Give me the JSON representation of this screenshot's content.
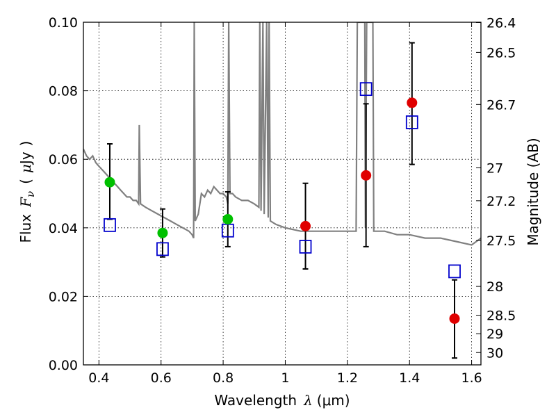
{
  "chart_data": {
    "type": "scatter",
    "xlabel": "Wavelength",
    "xlabel_symbol": "λ",
    "xlabel_unit": "(μm)",
    "ylabel": "Flux",
    "ylabel_symbol": "F",
    "ylabel_subscript": "ν",
    "ylabel_unit_open": "(",
    "ylabel_unit_mu": "μ",
    "ylabel_unit": "Jy",
    "ylabel_unit_close": ")",
    "y2label": "Magnitude (AB)",
    "xlim": [
      0.35,
      1.63
    ],
    "ylim": [
      0.0,
      0.1
    ],
    "grid": true,
    "x_ticks": [
      0.4,
      0.6,
      0.8,
      1.0,
      1.2,
      1.4,
      1.6
    ],
    "x_tick_labels": [
      "0.4",
      "0.6",
      "0.8",
      "1",
      "1.2",
      "1.4",
      "1.6"
    ],
    "y_ticks": [
      0.0,
      0.02,
      0.04,
      0.06,
      0.08,
      0.1
    ],
    "y_tick_labels": [
      "0.00",
      "0.02",
      "0.04",
      "0.06",
      "0.08",
      "0.10"
    ],
    "y2_ticks": [
      {
        "flux": 0.0999,
        "label": "26.4"
      },
      {
        "flux": 0.0912,
        "label": "26.5"
      },
      {
        "flux": 0.076,
        "label": "26.7"
      },
      {
        "flux": 0.0575,
        "label": "27"
      },
      {
        "flux": 0.0479,
        "label": "27.2"
      },
      {
        "flux": 0.0363,
        "label": "27.5"
      },
      {
        "flux": 0.0229,
        "label": "28"
      },
      {
        "flux": 0.0145,
        "label": "28.5"
      },
      {
        "flux": 0.0091,
        "label": "29"
      },
      {
        "flux": 0.0036,
        "label": "30"
      }
    ],
    "series": [
      {
        "kind": "model-sed",
        "color": "#808080",
        "points": [
          [
            0.35,
            0.063
          ],
          [
            0.36,
            0.061
          ],
          [
            0.37,
            0.06
          ],
          [
            0.38,
            0.061
          ],
          [
            0.39,
            0.059
          ],
          [
            0.4,
            0.058
          ],
          [
            0.41,
            0.057
          ],
          [
            0.42,
            0.056
          ],
          [
            0.43,
            0.055
          ],
          [
            0.44,
            0.054
          ],
          [
            0.45,
            0.053
          ],
          [
            0.46,
            0.052
          ],
          [
            0.47,
            0.051
          ],
          [
            0.48,
            0.05
          ],
          [
            0.49,
            0.049
          ],
          [
            0.5,
            0.049
          ],
          [
            0.51,
            0.048
          ],
          [
            0.52,
            0.048
          ],
          [
            0.528,
            0.047
          ],
          [
            0.53,
            0.07
          ],
          [
            0.534,
            0.047
          ],
          [
            0.55,
            0.046
          ],
          [
            0.57,
            0.045
          ],
          [
            0.59,
            0.044
          ],
          [
            0.61,
            0.043
          ],
          [
            0.63,
            0.042
          ],
          [
            0.65,
            0.041
          ],
          [
            0.67,
            0.04
          ],
          [
            0.69,
            0.039
          ],
          [
            0.7,
            0.038
          ],
          [
            0.705,
            0.037
          ],
          [
            0.707,
            0.1
          ],
          [
            0.71,
            0.042
          ],
          [
            0.72,
            0.044
          ],
          [
            0.73,
            0.05
          ],
          [
            0.74,
            0.049
          ],
          [
            0.75,
            0.051
          ],
          [
            0.76,
            0.05
          ],
          [
            0.77,
            0.052
          ],
          [
            0.78,
            0.051
          ],
          [
            0.79,
            0.05
          ],
          [
            0.8,
            0.05
          ],
          [
            0.81,
            0.049
          ],
          [
            0.815,
            0.047
          ],
          [
            0.818,
            0.1
          ],
          [
            0.822,
            0.05
          ],
          [
            0.83,
            0.05
          ],
          [
            0.84,
            0.049
          ],
          [
            0.86,
            0.048
          ],
          [
            0.88,
            0.048
          ],
          [
            0.9,
            0.047
          ],
          [
            0.915,
            0.046
          ],
          [
            0.918,
            0.1
          ],
          [
            0.922,
            0.045
          ],
          [
            0.928,
            0.1
          ],
          [
            0.932,
            0.044
          ],
          [
            0.94,
            0.1
          ],
          [
            0.945,
            0.043
          ],
          [
            0.948,
            0.1
          ],
          [
            0.952,
            0.042
          ],
          [
            0.97,
            0.041
          ],
          [
            1.0,
            0.04
          ],
          [
            1.05,
            0.039
          ],
          [
            1.1,
            0.039
          ],
          [
            1.15,
            0.039
          ],
          [
            1.2,
            0.039
          ],
          [
            1.228,
            0.039
          ],
          [
            1.232,
            0.1
          ],
          [
            1.256,
            0.1
          ],
          [
            1.258,
            0.04
          ],
          [
            1.262,
            0.1
          ],
          [
            1.282,
            0.1
          ],
          [
            1.285,
            0.039
          ],
          [
            1.32,
            0.039
          ],
          [
            1.36,
            0.038
          ],
          [
            1.4,
            0.038
          ],
          [
            1.45,
            0.037
          ],
          [
            1.5,
            0.037
          ],
          [
            1.55,
            0.036
          ],
          [
            1.6,
            0.035
          ],
          [
            1.63,
            0.037
          ]
        ]
      },
      {
        "kind": "observed",
        "color": "#00c000",
        "points": [
          {
            "x": 0.435,
            "y": 0.0533,
            "err_low": 0.0425,
            "err_high": 0.0645
          },
          {
            "x": 0.605,
            "y": 0.0385,
            "err_low": 0.0315,
            "err_high": 0.0455
          },
          {
            "x": 0.815,
            "y": 0.0425,
            "err_low": 0.0345,
            "err_high": 0.0505
          }
        ]
      },
      {
        "kind": "observed",
        "color": "#e00000",
        "points": [
          {
            "x": 1.065,
            "y": 0.0405,
            "err_low": 0.028,
            "err_high": 0.053
          },
          {
            "x": 1.26,
            "y": 0.0553,
            "err_low": 0.0345,
            "err_high": 0.0762
          },
          {
            "x": 1.408,
            "y": 0.0765,
            "err_low": 0.0585,
            "err_high": 0.094
          },
          {
            "x": 1.545,
            "y": 0.0135,
            "err_low": 0.002,
            "err_high": 0.0248
          }
        ]
      },
      {
        "kind": "model-photometry",
        "color": "#0000cc",
        "points": [
          {
            "x": 0.435,
            "y": 0.0408
          },
          {
            "x": 0.605,
            "y": 0.0338
          },
          {
            "x": 0.815,
            "y": 0.0392
          },
          {
            "x": 1.065,
            "y": 0.0345
          },
          {
            "x": 1.26,
            "y": 0.0805
          },
          {
            "x": 1.408,
            "y": 0.0708
          },
          {
            "x": 1.545,
            "y": 0.0273
          }
        ]
      }
    ]
  }
}
